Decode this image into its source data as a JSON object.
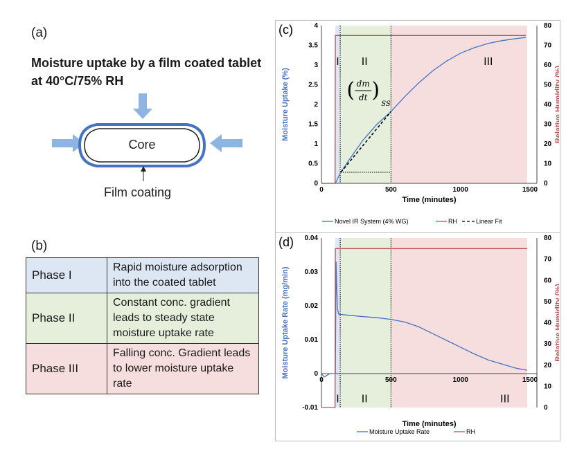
{
  "panel_a": {
    "label": "(a)",
    "title": "Moisture uptake by a film coated tablet at 40°C/75% RH",
    "core_label": "Core",
    "film_label": "Film coating"
  },
  "panel_b": {
    "label": "(b)",
    "rows": [
      {
        "phase": "Phase I",
        "description": "Rapid moisture adsorption into the coated tablet",
        "color": "#dde6f3"
      },
      {
        "phase": "Phase II",
        "description": "Constant conc. gradient leads to steady state moisture uptake rate",
        "color": "#e5efdb"
      },
      {
        "phase": "Phase III",
        "description": "Falling conc. Gradient leads to lower moisture uptake rate",
        "color": "#f7dede"
      }
    ]
  },
  "colors": {
    "blue": "#4472c4",
    "red": "#c0504d",
    "arrow": "#8eb4e3",
    "phase1": "#dde6f3",
    "phase2": "#e5efdb",
    "phase3": "#f7dede"
  },
  "chart_data": [
    {
      "panel": "(c)",
      "type": "line",
      "xlabel": "Time (minutes)",
      "ylabel": "Moisture Uptake (%)",
      "y2label": "Relative Humidity (%)",
      "xlim": [
        0,
        1550
      ],
      "ylim": [
        0,
        4
      ],
      "y2lim": [
        0,
        80
      ],
      "xticks": [
        0,
        500,
        1000,
        1500
      ],
      "yticks": [
        0,
        0.5,
        1,
        1.5,
        2,
        2.5,
        3,
        3.5,
        4
      ],
      "y2ticks": [
        0,
        10,
        20,
        30,
        40,
        50,
        60,
        70,
        80
      ],
      "phase_bounds": [
        100,
        135,
        500,
        1480
      ],
      "phase_labels": [
        "I",
        "II",
        "III"
      ],
      "annotation": "(dm/dt)ss",
      "series": [
        {
          "name": "Novel IR System (4% WG)",
          "axis": "left",
          "color": "#4472c4",
          "x": [
            0,
            100,
            135,
            200,
            300,
            400,
            500,
            600,
            700,
            800,
            900,
            1000,
            1100,
            1200,
            1300,
            1400,
            1470
          ],
          "y": [
            0,
            0,
            0.26,
            0.6,
            1.1,
            1.5,
            1.82,
            2.2,
            2.55,
            2.85,
            3.1,
            3.3,
            3.44,
            3.55,
            3.62,
            3.67,
            3.7
          ]
        },
        {
          "name": "RH",
          "axis": "right",
          "color": "#c0504d",
          "x": [
            0,
            98,
            100,
            1470
          ],
          "y": [
            0,
            0,
            75,
            75
          ]
        },
        {
          "name": "Linear Fit",
          "axis": "left",
          "color": "#000000",
          "dash": true,
          "x": [
            140,
            500
          ],
          "y": [
            0.28,
            1.82
          ]
        }
      ]
    },
    {
      "panel": "(d)",
      "type": "line",
      "xlabel": "Time (minutes)",
      "ylabel": "Moisture Uptake Rate (mg/min)",
      "y2label": "Relative Humidity (%)",
      "xlim": [
        0,
        1550
      ],
      "ylim": [
        -0.01,
        0.04
      ],
      "y2lim": [
        0,
        80
      ],
      "xticks": [
        0,
        500,
        1000,
        1500
      ],
      "yticks": [
        -0.01,
        0,
        0.01,
        0.02,
        0.03,
        0.04
      ],
      "y2ticks": [
        0,
        10,
        20,
        30,
        40,
        50,
        60,
        70,
        80
      ],
      "phase_bounds": [
        100,
        135,
        500,
        1480
      ],
      "phase_labels": [
        "I",
        "II",
        "III"
      ],
      "series": [
        {
          "name": "Moisture Uptake Rate",
          "axis": "left",
          "color": "#4472c4",
          "x": [
            0,
            20,
            40,
            60,
            80,
            100,
            105,
            110,
            115,
            125,
            200,
            300,
            400,
            500,
            600,
            700,
            800,
            900,
            1000,
            1100,
            1200,
            1300,
            1400,
            1480
          ],
          "y": [
            0,
            -0.001,
            -0.0005,
            0,
            0,
            0,
            0.033,
            0.025,
            0.019,
            0.0175,
            0.0172,
            0.0168,
            0.0165,
            0.016,
            0.0152,
            0.0138,
            0.0118,
            0.0098,
            0.0078,
            0.0058,
            0.004,
            0.0028,
            0.0016,
            0.001
          ]
        },
        {
          "name": "RH",
          "axis": "right",
          "color": "#c0504d",
          "x": [
            0,
            98,
            100,
            1480
          ],
          "y": [
            0,
            0,
            75,
            75
          ]
        }
      ]
    }
  ]
}
